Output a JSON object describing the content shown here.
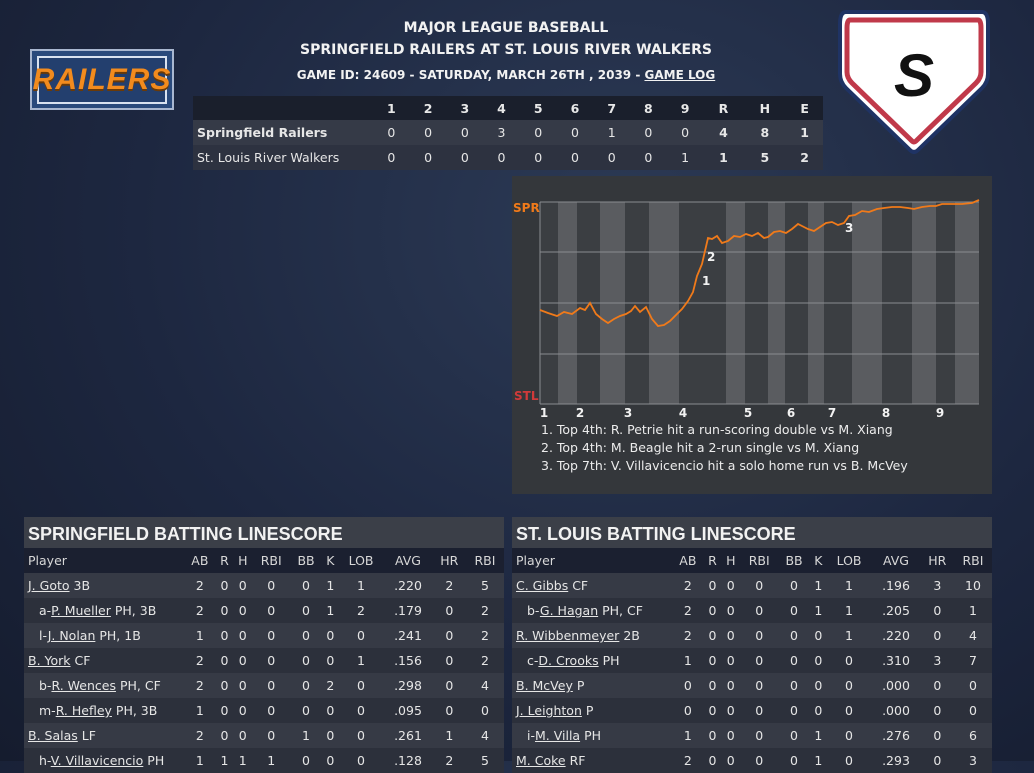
{
  "header": {
    "league": "MAJOR LEAGUE BASEBALL",
    "matchup": "SPRINGFIELD RAILERS AT ST. LOUIS RIVER WALKERS",
    "game_info": "GAME ID: 24609 - SATURDAY, MARCH 26TH , 2039 - ",
    "game_log_link": "GAME LOG"
  },
  "logos": {
    "away_logo_text": "RAILERS",
    "home_logo_letter": "S"
  },
  "linescore": {
    "innings": [
      "1",
      "2",
      "3",
      "4",
      "5",
      "6",
      "7",
      "8",
      "9"
    ],
    "totals_headers": [
      "R",
      "H",
      "E"
    ],
    "rows": [
      {
        "team": "Springfield Railers",
        "innings": [
          "0",
          "0",
          "0",
          "3",
          "0",
          "0",
          "1",
          "0",
          "0"
        ],
        "totals": [
          "4",
          "8",
          "1"
        ]
      },
      {
        "team": "St. Louis River Walkers",
        "innings": [
          "0",
          "0",
          "0",
          "0",
          "0",
          "0",
          "0",
          "0",
          "1"
        ],
        "totals": [
          "1",
          "5",
          "2"
        ]
      }
    ]
  },
  "win_prob_chart": {
    "top_label": "SPR",
    "bottom_label": "STL",
    "inning_labels": [
      "1",
      "2",
      "3",
      "4",
      "5",
      "6",
      "7",
      "8",
      "9"
    ],
    "line_color": "#f07a1a",
    "top_label_color": "#f07a1a",
    "bottom_label_color": "#d13a3a",
    "markers": [
      "1",
      "2",
      "3"
    ],
    "notes": [
      "1. Top 4th: R. Petrie hit a run-scoring double vs M. Xiang",
      "2. Top 4th: M. Beagle hit a 2-run single vs M. Xiang",
      "3. Top 7th: V. Villavicencio hit a solo home run vs B. McVey"
    ]
  },
  "springfield_batting": {
    "title": "SPRINGFIELD BATTING LINESCORE",
    "columns": [
      "Player",
      "AB",
      "R",
      "H",
      "RBI",
      "BB",
      "K",
      "LOB",
      "AVG",
      "HR",
      "RBI"
    ],
    "rows": [
      {
        "prefix": "",
        "name": "J. Goto",
        "pos": "3B",
        "stats": [
          "2",
          "0",
          "0",
          "0",
          "0",
          "1",
          "1",
          ".220",
          "2",
          "5"
        ]
      },
      {
        "prefix": "a-",
        "name": "P. Mueller",
        "pos": "PH, 3B",
        "stats": [
          "2",
          "0",
          "0",
          "0",
          "0",
          "1",
          "2",
          ".179",
          "0",
          "2"
        ]
      },
      {
        "prefix": "l-",
        "name": "J. Nolan",
        "pos": "PH, 1B",
        "stats": [
          "1",
          "0",
          "0",
          "0",
          "0",
          "0",
          "0",
          ".241",
          "0",
          "2"
        ]
      },
      {
        "prefix": "",
        "name": "B. York",
        "pos": "CF",
        "stats": [
          "2",
          "0",
          "0",
          "0",
          "0",
          "0",
          "1",
          ".156",
          "0",
          "2"
        ]
      },
      {
        "prefix": "b-",
        "name": "R. Wences",
        "pos": "PH, CF",
        "stats": [
          "2",
          "0",
          "0",
          "0",
          "0",
          "2",
          "0",
          ".298",
          "0",
          "4"
        ]
      },
      {
        "prefix": "m-",
        "name": "R. Hefley",
        "pos": "PH, 3B",
        "stats": [
          "1",
          "0",
          "0",
          "0",
          "0",
          "0",
          "0",
          ".095",
          "0",
          "0"
        ]
      },
      {
        "prefix": "",
        "name": "B. Salas",
        "pos": "LF",
        "stats": [
          "2",
          "0",
          "0",
          "0",
          "1",
          "0",
          "0",
          ".261",
          "1",
          "4"
        ]
      },
      {
        "prefix": "h-",
        "name": "V. Villavicencio",
        "pos": "PH",
        "stats": [
          "1",
          "1",
          "1",
          "1",
          "0",
          "0",
          "0",
          ".128",
          "2",
          "5"
        ]
      }
    ]
  },
  "stlouis_batting": {
    "title": "ST. LOUIS BATTING LINESCORE",
    "columns": [
      "Player",
      "AB",
      "R",
      "H",
      "RBI",
      "BB",
      "K",
      "LOB",
      "AVG",
      "HR",
      "RBI"
    ],
    "rows": [
      {
        "prefix": "",
        "name": "C. Gibbs",
        "pos": "CF",
        "stats": [
          "2",
          "0",
          "0",
          "0",
          "0",
          "1",
          "1",
          ".196",
          "3",
          "10"
        ]
      },
      {
        "prefix": "b-",
        "name": "G. Hagan",
        "pos": "PH, CF",
        "stats": [
          "2",
          "0",
          "0",
          "0",
          "0",
          "1",
          "1",
          ".205",
          "0",
          "1"
        ]
      },
      {
        "prefix": "",
        "name": "R. Wibbenmeyer",
        "pos": "2B",
        "stats": [
          "2",
          "0",
          "0",
          "0",
          "0",
          "0",
          "1",
          ".220",
          "0",
          "4"
        ]
      },
      {
        "prefix": "c-",
        "name": "D. Crooks",
        "pos": "PH",
        "stats": [
          "1",
          "0",
          "0",
          "0",
          "0",
          "0",
          "0",
          ".310",
          "3",
          "7"
        ]
      },
      {
        "prefix": "",
        "name": "B. McVey",
        "pos": "P",
        "stats": [
          "0",
          "0",
          "0",
          "0",
          "0",
          "0",
          "0",
          ".000",
          "0",
          "0"
        ]
      },
      {
        "prefix": "",
        "name": "J. Leighton",
        "pos": "P",
        "stats": [
          "0",
          "0",
          "0",
          "0",
          "0",
          "0",
          "0",
          ".000",
          "0",
          "0"
        ]
      },
      {
        "prefix": "i-",
        "name": "M. Villa",
        "pos": "PH",
        "stats": [
          "1",
          "0",
          "0",
          "0",
          "0",
          "1",
          "0",
          ".276",
          "0",
          "6"
        ]
      },
      {
        "prefix": "",
        "name": "M. Coke",
        "pos": "RF",
        "stats": [
          "2",
          "0",
          "0",
          "0",
          "0",
          "1",
          "0",
          ".293",
          "0",
          "3"
        ]
      }
    ]
  }
}
